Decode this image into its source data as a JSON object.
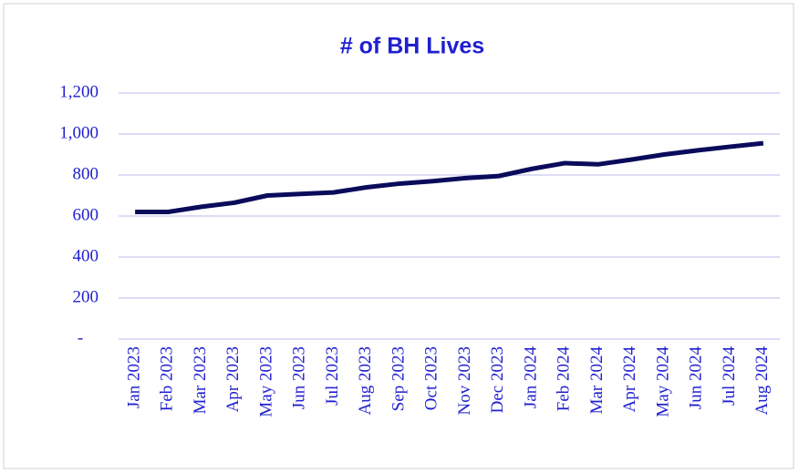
{
  "chart_data": {
    "type": "line",
    "title": "# of BH Lives",
    "categories": [
      "Jan 2023",
      "Feb 2023",
      "Mar 2023",
      "Apr 2023",
      "May 2023",
      "Jun 2023",
      "Jul 2023",
      "Aug 2023",
      "Sep 2023",
      "Oct 2023",
      "Nov 2023",
      "Dec 2023",
      "Jan 2024",
      "Feb 2024",
      "Mar 2024",
      "Apr 2024",
      "May 2024",
      "Jun 2024",
      "Jul 2024",
      "Aug 2024"
    ],
    "series": [
      {
        "name": "# of BH Lives",
        "color": "#0b0b5c",
        "values": [
          620,
          620,
          645,
          665,
          700,
          708,
          715,
          740,
          758,
          770,
          785,
          795,
          830,
          858,
          852,
          875,
          900,
          920,
          938,
          955
        ]
      }
    ],
    "ylim": [
      0,
      1200
    ],
    "yticks": [
      {
        "value": 0,
        "label": "-"
      },
      200,
      400,
      600,
      800,
      {
        "value": 1000,
        "label": "1,000"
      },
      {
        "value": 1200,
        "label": "1,200"
      }
    ],
    "grid": true
  }
}
